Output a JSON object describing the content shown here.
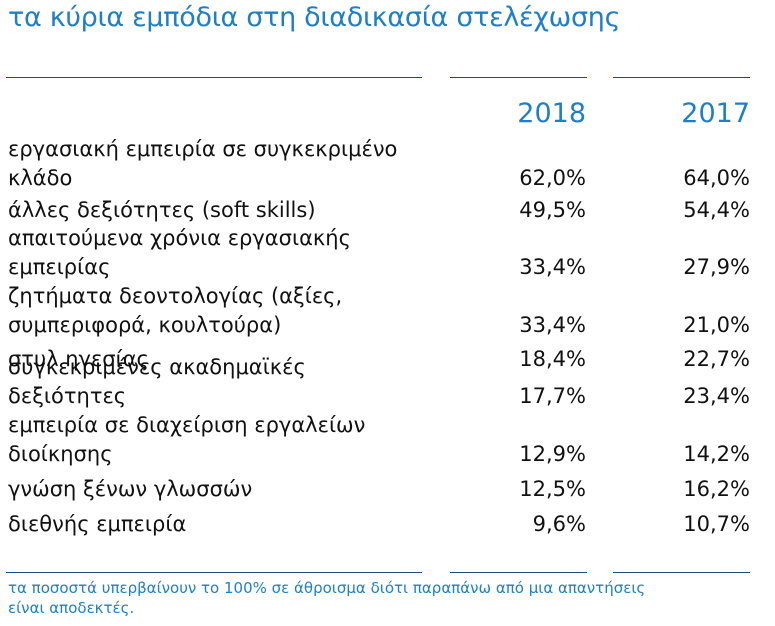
{
  "title": "τα κύρια εμπόδια στη διαδικασία στελέχωσης",
  "columns": [
    "2018",
    "2017"
  ],
  "rows": [
    {
      "label": "εργασιακή εμπειρία σε συγκεκριμένο\nκλάδο",
      "v2018": "62,0%",
      "v2017": "64,0%"
    },
    {
      "label": "άλλες δεξιότητες (soft skills)",
      "v2018": "49,5%",
      "v2017": "54,4%"
    },
    {
      "label": "απαιτούμενα χρόνια εργασιακής\nεμπειρίας",
      "v2018": "33,4%",
      "v2017": "27,9%"
    },
    {
      "label": "ζητήματα δεοντολογίας (αξίες,\nσυμπεριφορά, κουλτούρα)",
      "v2018": "33,4%",
      "v2017": "21,0%"
    },
    {
      "label": "στυλ ηγεσίας",
      "v2018": "18,4%",
      "v2017": "22,7%"
    },
    {
      "label": "συγκεκριμένες ακαδημαϊκές δεξιότητες",
      "v2018": "17,7%",
      "v2017": "23,4%"
    },
    {
      "label": "εμπειρία σε διαχείριση εργαλείων\nδιοίκησης",
      "v2018": "12,9%",
      "v2017": "14,2%"
    },
    {
      "label": "γνώση ξένων γλωσσών",
      "v2018": "12,5%",
      "v2017": "16,2%"
    },
    {
      "label": "διεθνής εμπειρία",
      "v2018": "9,6%",
      "v2017": "10,7%"
    }
  ],
  "footnote": "τα ποσοστά υπερβαίνουν το 100% σε άθροισμα διότι παραπάνω από μια απαντήσεις\nείναι αποδεκτές."
}
